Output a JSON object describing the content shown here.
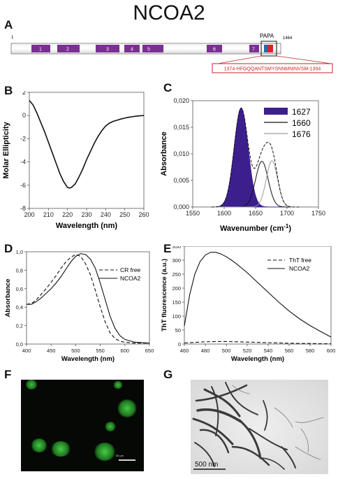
{
  "title": "NCOA2",
  "panels": {
    "A": "A",
    "B": "B",
    "C": "C",
    "D": "D",
    "E": "E",
    "F": "F",
    "G": "G"
  },
  "panel_a": {
    "start_label": "1",
    "end_label": "1464",
    "papa_label": "PAPA",
    "sequence": "1374-HFGQQANTSMYSNNMNINVSM-1394",
    "domains": [
      "1",
      "2",
      "3",
      "4",
      "5",
      "6",
      "7"
    ],
    "domain_color": "#7b2f93",
    "papa_colors": [
      "#1d6fa8",
      "#d8232a"
    ]
  },
  "chart_data": [
    {
      "id": "B",
      "type": "line",
      "xlabel": "Wavelength (nm)",
      "ylabel": "Molar Ellipticity",
      "xlim": [
        200,
        260
      ],
      "ylim": [
        -8,
        2
      ],
      "xticks": [
        "200",
        "210",
        "220",
        "230",
        "240",
        "250",
        "260"
      ],
      "yticks": [
        "2",
        "0",
        "-2",
        "-4",
        "-6",
        "-8"
      ],
      "series": [
        {
          "x": [
            200,
            202,
            204,
            206,
            208,
            210,
            212,
            214,
            216,
            218,
            220,
            221,
            222,
            224,
            226,
            228,
            230,
            232,
            234,
            236,
            238,
            240,
            242,
            244,
            246,
            248,
            250,
            252,
            254,
            256,
            258,
            260
          ],
          "y": [
            1.3,
            0.9,
            0.2,
            -0.6,
            -1.4,
            -2.3,
            -3.2,
            -4.1,
            -5.0,
            -5.7,
            -6.2,
            -6.25,
            -6.2,
            -5.9,
            -5.3,
            -4.6,
            -3.8,
            -3.1,
            -2.4,
            -1.8,
            -1.3,
            -0.9,
            -0.65,
            -0.5,
            -0.4,
            -0.3,
            -0.22,
            -0.15,
            -0.1,
            -0.05,
            -0.02,
            0.0
          ]
        }
      ]
    },
    {
      "id": "C",
      "type": "area",
      "xlabel": "Wavenumber (cm",
      "xlabel_sup": "-1",
      "xlabel_end": ")",
      "ylabel": "Absorbance",
      "xlim": [
        1550,
        1750
      ],
      "ylim": [
        0,
        0.02
      ],
      "xticks": [
        "1550",
        "1600",
        "1650",
        "1700",
        "1750"
      ],
      "yticks": [
        "0,020",
        "0,015",
        "0,010",
        "0,005",
        "0,000"
      ],
      "series": [
        {
          "name": "1627",
          "center": 1627,
          "amplitude": 0.0186,
          "sigma": 11,
          "style": "filled",
          "color": "#3c1f8c"
        },
        {
          "name": "1660",
          "center": 1660,
          "amplitude": 0.0086,
          "sigma": 10,
          "style": "solid",
          "color": "#111111"
        },
        {
          "name": "1676",
          "center": 1676,
          "amplitude": 0.0087,
          "sigma": 9,
          "style": "gray",
          "color": "#9a9a9a"
        }
      ],
      "envelope_style": "dashed"
    },
    {
      "id": "D",
      "type": "line",
      "xlabel": "Wavelength (nm)",
      "ylabel": "Absorbance",
      "xlim": [
        400,
        650
      ],
      "ylim": [
        0,
        1
      ],
      "xticks": [
        "400",
        "450",
        "500",
        "550",
        "600",
        "650"
      ],
      "yticks": [
        "1,0",
        "0,8",
        "0,6",
        "0,4",
        "0,2",
        "0,0"
      ],
      "series": [
        {
          "name": "CR free",
          "style": "dashed",
          "x": [
            400,
            410,
            420,
            430,
            440,
            450,
            460,
            470,
            480,
            490,
            500,
            510,
            520,
            530,
            540,
            550,
            560,
            570,
            580,
            590,
            600,
            620,
            650
          ],
          "y": [
            0.43,
            0.44,
            0.48,
            0.54,
            0.6,
            0.67,
            0.74,
            0.82,
            0.89,
            0.94,
            0.97,
            0.95,
            0.87,
            0.75,
            0.58,
            0.4,
            0.24,
            0.12,
            0.06,
            0.03,
            0.02,
            0.01,
            0.01
          ]
        },
        {
          "name": "NCOA2",
          "style": "solid",
          "x": [
            400,
            410,
            420,
            430,
            440,
            450,
            460,
            470,
            480,
            490,
            500,
            510,
            520,
            530,
            540,
            550,
            560,
            570,
            580,
            590,
            600,
            620,
            650
          ],
          "y": [
            0.43,
            0.43,
            0.46,
            0.5,
            0.55,
            0.6,
            0.66,
            0.73,
            0.81,
            0.89,
            0.95,
            0.98,
            0.97,
            0.92,
            0.82,
            0.66,
            0.48,
            0.3,
            0.17,
            0.09,
            0.05,
            0.02,
            0.01
          ]
        }
      ]
    },
    {
      "id": "E",
      "type": "line",
      "xlabel": "Wavelength (nm)",
      "ylabel": "ThT fluorescence (a.u.)",
      "xlim": [
        460,
        600
      ],
      "ylim": [
        0,
        350
      ],
      "xticks": [
        "460",
        "480",
        "500",
        "520",
        "540",
        "560",
        "580",
        "600"
      ],
      "yticks": [
        "350",
        "300",
        "250",
        "200",
        "150",
        "100",
        "50",
        "0"
      ],
      "series": [
        {
          "name": "ThT free",
          "style": "dashed",
          "x": [
            460,
            470,
            480,
            490,
            500,
            510,
            520,
            530,
            540,
            550,
            560,
            570,
            580,
            590,
            600
          ],
          "y": [
            4,
            6,
            8,
            9,
            9,
            8,
            7,
            6,
            5,
            4,
            3,
            2,
            2,
            1,
            1
          ]
        },
        {
          "name": "NCOA2",
          "style": "solid",
          "x": [
            460,
            465,
            470,
            475,
            480,
            485,
            490,
            495,
            500,
            505,
            510,
            520,
            530,
            540,
            550,
            560,
            570,
            580,
            590,
            600
          ],
          "y": [
            65,
            175,
            250,
            295,
            318,
            328,
            328,
            322,
            312,
            300,
            286,
            255,
            220,
            185,
            150,
            118,
            90,
            66,
            45,
            25
          ]
        }
      ]
    }
  ],
  "micrographs": {
    "fluor_scale": "50 µm",
    "tem_scale": "500  nm"
  }
}
